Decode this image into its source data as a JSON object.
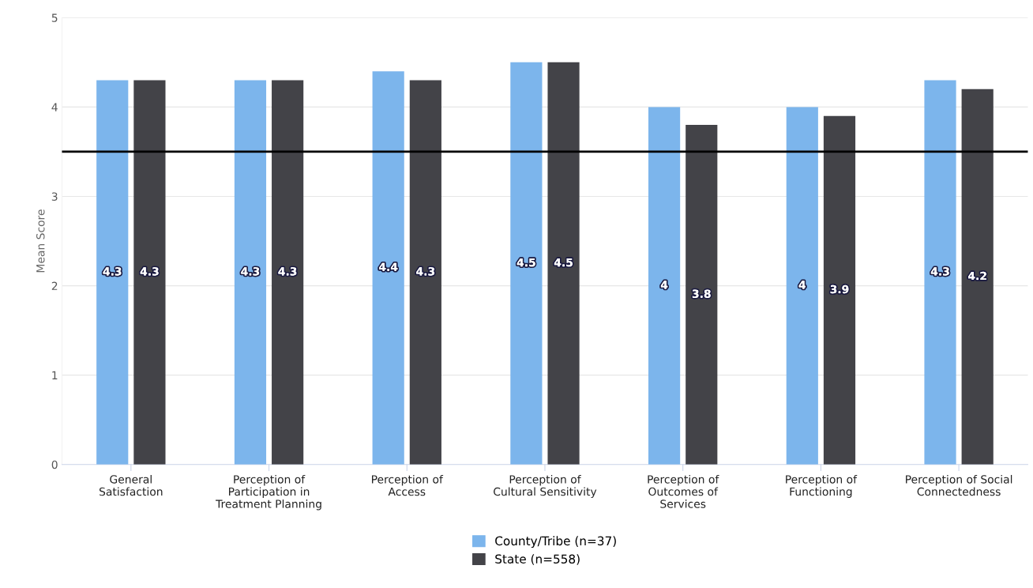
{
  "chart_data": {
    "type": "bar",
    "ylabel": "Mean Score",
    "categories": [
      "General\nSatisfaction",
      "Perception of\nParticipation in\nTreatment Planning",
      "Perception of\nAccess",
      "Perception of\nCultural Sensitivity",
      "Perception of\nOutcomes of\nServices",
      "Perception of\nFunctioning",
      "Perception of Social\nConnectedness"
    ],
    "series": [
      {
        "name": "County/Tribe (n=37)",
        "color": "#7cb5ec",
        "values": [
          4.3,
          4.3,
          4.4,
          4.5,
          4,
          4,
          4.3
        ]
      },
      {
        "name": "State (n=558)",
        "color": "#434348",
        "values": [
          4.3,
          4.3,
          4.3,
          4.5,
          3.8,
          3.9,
          4.2
        ]
      }
    ],
    "ylim": [
      0,
      5
    ],
    "yticks": [
      0,
      1,
      2,
      3,
      4,
      5
    ],
    "ref_lines": [
      {
        "axis": "y",
        "value": 3.5,
        "color": "#000000"
      }
    ],
    "grid": "y",
    "legend": "bottom",
    "data_labels": true
  }
}
